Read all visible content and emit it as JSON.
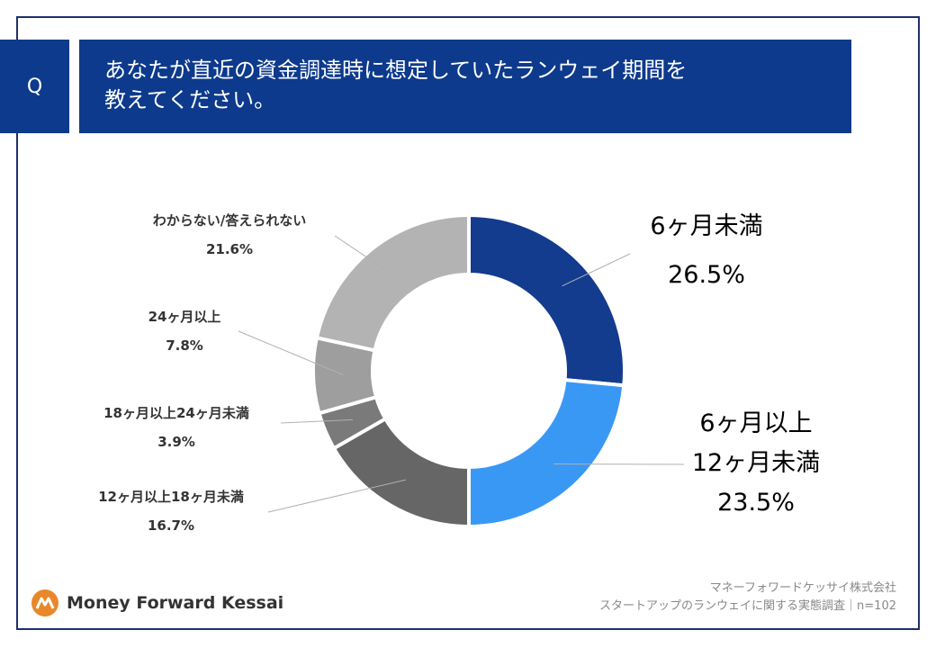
{
  "header": {
    "q_label": "Q",
    "title_line1": "あなたが直近の資金調達時に想定していたランウェイ期間を",
    "title_line2": "教えてください。"
  },
  "chart_data": {
    "type": "pie",
    "donut": true,
    "slices": [
      {
        "name_lines": [
          "6ヶ月未満"
        ],
        "value": 26.5,
        "value_label": "26.5%",
        "color": "#133b8e",
        "label_color": "#133b8e"
      },
      {
        "name_lines": [
          "6ヶ月以上",
          "12ヶ月未満"
        ],
        "value": 23.5,
        "value_label": "23.5%",
        "color": "#3a98f5",
        "label_color": "#6a95de"
      },
      {
        "name_lines": [
          "12ヶ月以上18ヶ月未満"
        ],
        "value": 16.7,
        "value_label": "16.7%",
        "color": "#666666",
        "label_color": "#333333"
      },
      {
        "name_lines": [
          "18ヶ月以上24ヶ月未満"
        ],
        "value": 3.9,
        "value_label": "3.9%",
        "color": "#7a7a7a",
        "label_color": "#333333"
      },
      {
        "name_lines": [
          "24ヶ月以上"
        ],
        "value": 7.8,
        "value_label": "7.8%",
        "color": "#9e9e9e",
        "label_color": "#333333"
      },
      {
        "name_lines": [
          "わからない/答えられない"
        ],
        "value": 21.6,
        "value_label": "21.6%",
        "color": "#b3b3b3",
        "label_color": "#333333"
      }
    ]
  },
  "footer": {
    "company": "マネーフォワードケッサイ株式会社",
    "survey": "スタートアップのランウェイに関する実態調査｜n=102"
  },
  "logo": {
    "text": "Money Forward Kessai",
    "accent_color": "#e8882b"
  }
}
